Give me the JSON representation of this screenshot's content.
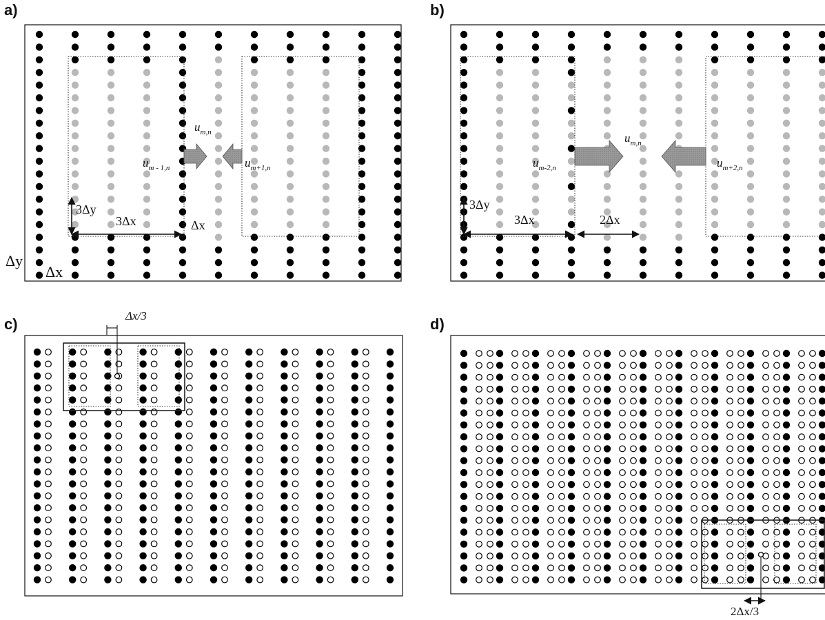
{
  "panels": {
    "a": {
      "label": "a)",
      "labels": {
        "u_center": "u",
        "u_center_sub": "m,n",
        "u_left": "u",
        "u_left_sub": "m - 1,n",
        "u_right": "u",
        "u_right_sub": "m+1,n",
        "three_dy": "3Δy",
        "three_dx": "3Δx",
        "dx": "Δx",
        "corner_dy": "Δy",
        "corner_dx": "Δx"
      }
    },
    "b": {
      "label": "b)",
      "labels": {
        "u_center": "u",
        "u_center_sub": "m,n",
        "u_left": "u",
        "u_left_sub": "m-2,n",
        "u_right": "u",
        "u_right_sub": "m+2,n",
        "three_dy": "3Δy",
        "three_dx": "3Δx",
        "two_dx": "2Δx"
      }
    },
    "c": {
      "label": "c)",
      "labels": {
        "dx_third": "Δx/3"
      }
    },
    "d": {
      "label": "d)",
      "labels": {
        "two_dx_third": "2Δx/3"
      }
    }
  },
  "colors": {
    "filled_dot": "#000000",
    "gray_dot": "#b8b8b8",
    "open_dot_stroke": "#000000",
    "arrow_fill": "#8c8c8c",
    "frame": "#222222"
  }
}
